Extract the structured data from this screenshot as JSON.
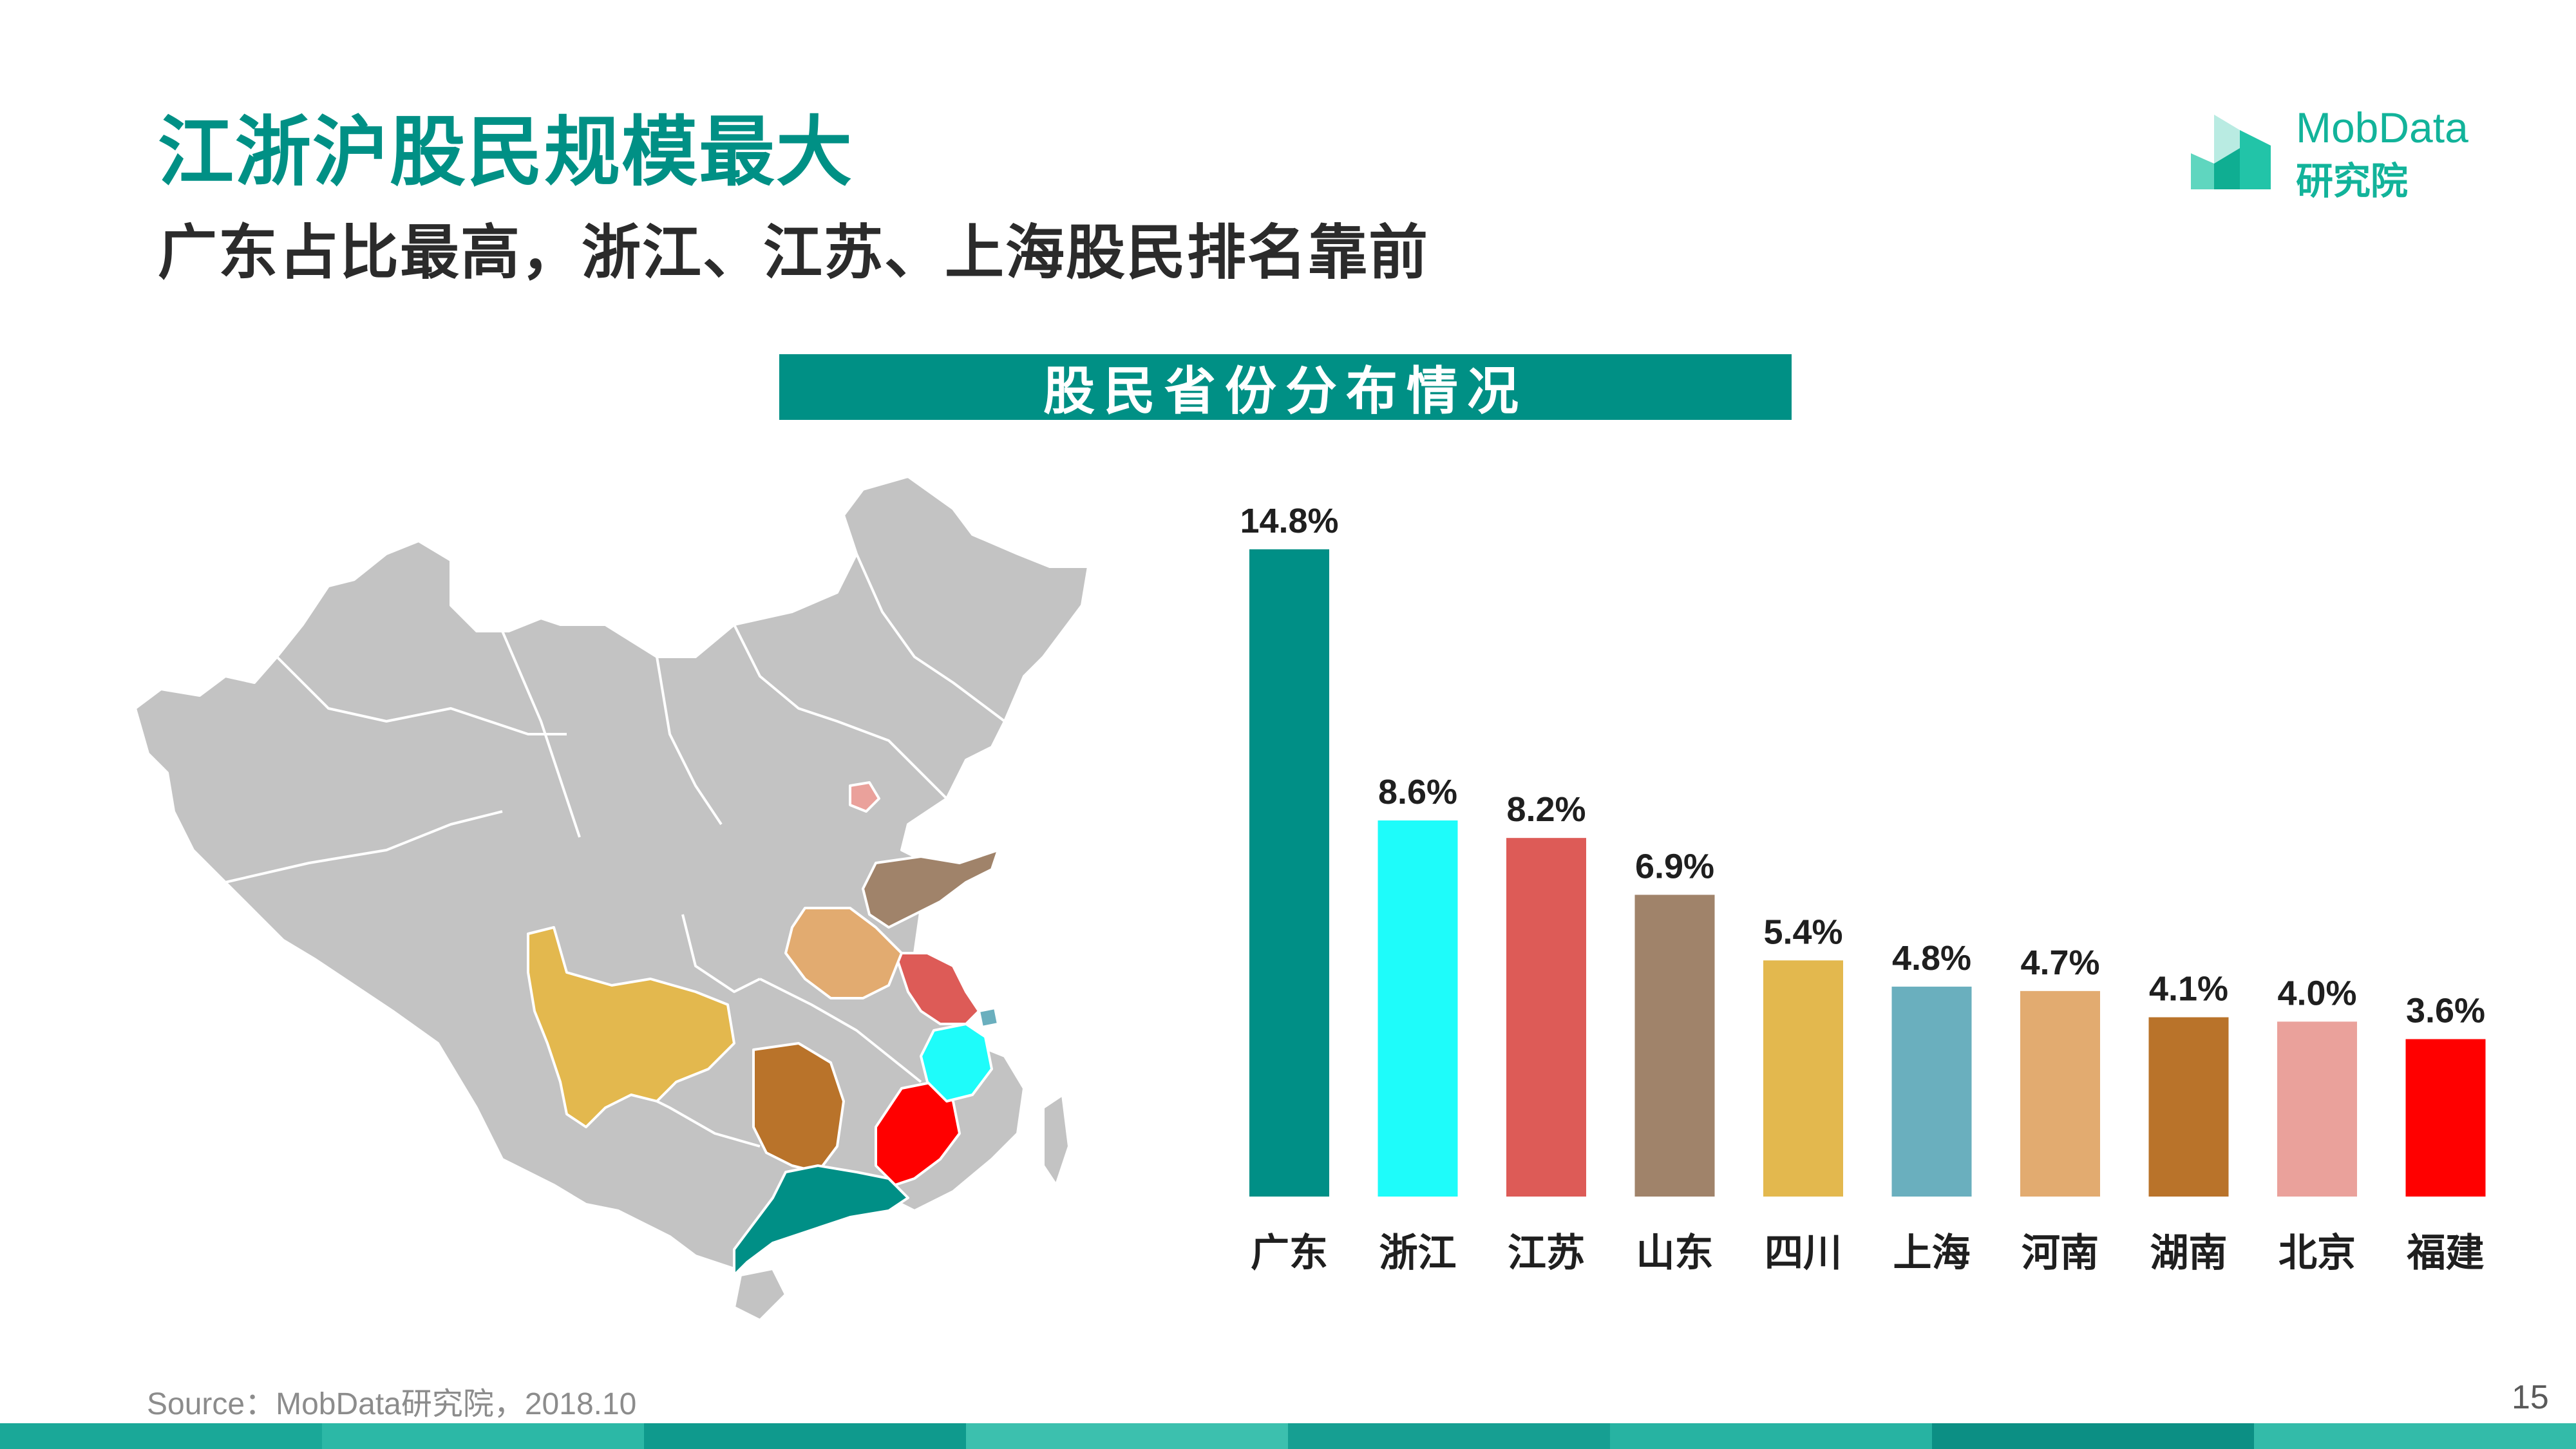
{
  "header": {
    "title": "江浙沪股民规模最大",
    "subtitle": "广东占比最高，浙江、江苏、上海股民排名靠前"
  },
  "logo": {
    "line1": "MobData",
    "line2": "研究院",
    "icon": "building-logo-icon",
    "color": "#12b39a"
  },
  "chart_data": {
    "type": "bar",
    "title": "股民省份分布情况",
    "categories": [
      "广东",
      "浙江",
      "江苏",
      "山东",
      "四川",
      "上海",
      "河南",
      "湖南",
      "北京",
      "福建"
    ],
    "values": [
      14.8,
      8.6,
      8.2,
      6.9,
      5.4,
      4.8,
      4.7,
      4.1,
      4.0,
      3.6
    ],
    "labels": [
      "14.8%",
      "8.6%",
      "8.2%",
      "6.9%",
      "5.4%",
      "4.8%",
      "4.7%",
      "4.1%",
      "4.0%",
      "3.6%"
    ],
    "colors": [
      "#008f86",
      "#1efcfa",
      "#dd5b57",
      "#a0836a",
      "#e3b84e",
      "#6aafbe",
      "#e2ab70",
      "#b9732a",
      "#eaa19b",
      "#ff0000"
    ],
    "ylabel": "",
    "xlabel": "",
    "ylim": [
      0,
      15
    ],
    "grid": false,
    "legend": "none"
  },
  "map": {
    "icon": "china-province-map",
    "base_color": "#c3c3c3",
    "border_color": "#ffffff"
  },
  "footer": {
    "source": "Source：MobData研究院，2018.10",
    "page": "15",
    "stripe_colors": [
      "#1aa898",
      "#2cb8a6",
      "#0f9a8d",
      "#3cc0ae",
      "#169f92",
      "#27b3a2",
      "#0c8f84",
      "#33bba9"
    ]
  }
}
